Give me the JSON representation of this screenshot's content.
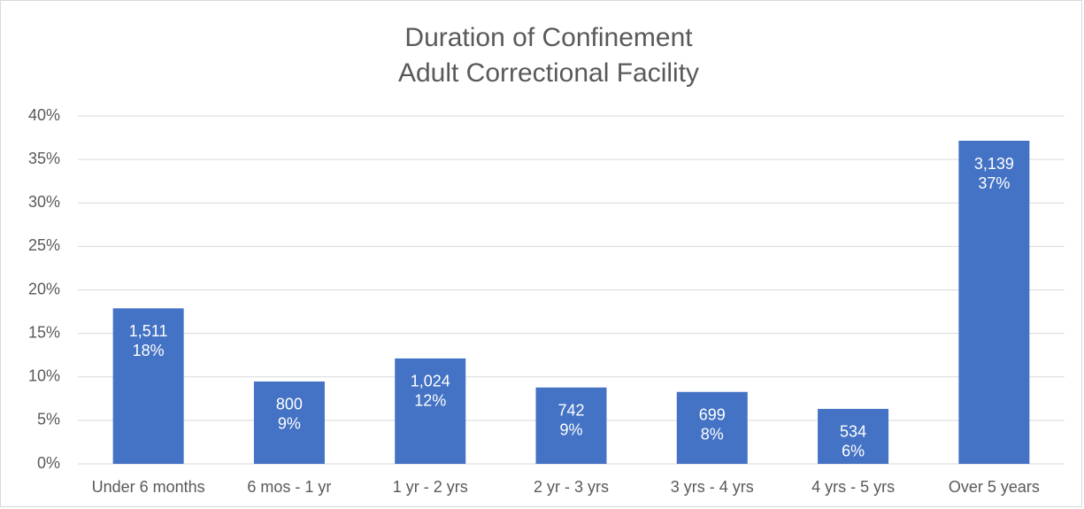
{
  "chart_data": {
    "type": "bar",
    "title": "Duration of Confinement",
    "subtitle": "Adult Correctional Facility",
    "categories": [
      "Under 6 months",
      "6 mos - 1 yr",
      "1 yr - 2 yrs",
      "2 yr - 3 yrs",
      "3 yrs - 4 yrs",
      "4 yrs - 5 yrs",
      "Over 5 years"
    ],
    "values": [
      17.88,
      9.47,
      12.12,
      8.78,
      8.27,
      6.32,
      37.15
    ],
    "value_labels": [
      "18%",
      "9%",
      "12%",
      "9%",
      "8%",
      "6%",
      "37%"
    ],
    "count_labels": [
      "1,511",
      "800",
      "1,024",
      "742",
      "699",
      "534",
      "3,139"
    ],
    "color": "#4472c4",
    "ylim": [
      0,
      40
    ],
    "yticks": [
      {
        "value": 0,
        "label": "0%"
      },
      {
        "value": 5,
        "label": "5%"
      },
      {
        "value": 10,
        "label": "10%"
      },
      {
        "value": 15,
        "label": "15%"
      },
      {
        "value": 20,
        "label": "20%"
      },
      {
        "value": 25,
        "label": "25%"
      },
      {
        "value": 30,
        "label": "30%"
      },
      {
        "value": 35,
        "label": "35%"
      },
      {
        "value": 40,
        "label": "40%"
      }
    ],
    "grid": true
  }
}
